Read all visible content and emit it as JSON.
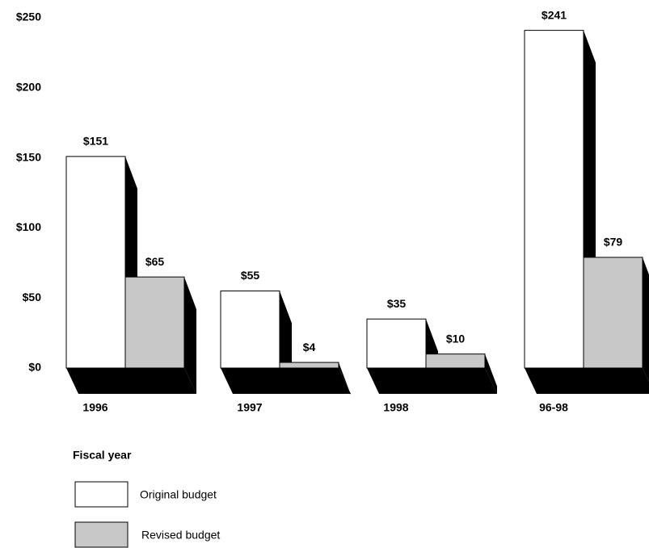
{
  "chart_data": {
    "type": "bar",
    "x_label": "Fiscal year",
    "categories": [
      "1996",
      "1997",
      "1998",
      "96-98"
    ],
    "series": [
      {
        "name": "Original budget",
        "color": "#ffffff",
        "values": [
          151,
          55,
          35,
          241
        ],
        "value_labels": [
          "$151",
          "$55",
          "$35",
          "$241"
        ]
      },
      {
        "name": "Revised budget",
        "color": "#c8c8c8",
        "values": [
          65,
          4,
          10,
          79
        ],
        "value_labels": [
          "$65",
          "$4",
          "$10",
          "$79"
        ]
      }
    ],
    "ylim": [
      0,
      250
    ],
    "yticks": [
      {
        "value": 0,
        "label": "$0"
      },
      {
        "value": 50,
        "label": "$50"
      },
      {
        "value": 100,
        "label": "$100"
      },
      {
        "value": 150,
        "label": "$150"
      },
      {
        "value": 200,
        "label": "$200"
      },
      {
        "value": 250,
        "label": "$250"
      }
    ]
  }
}
